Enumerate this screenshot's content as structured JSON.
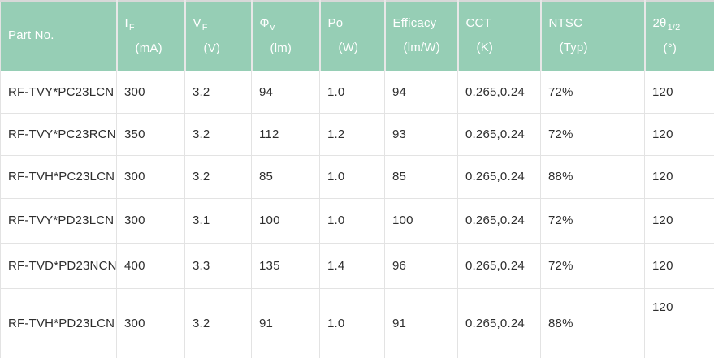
{
  "theme": {
    "header_bg": "#96ceb5",
    "header_text": "#ffffff",
    "body_text": "#2e2e2e",
    "grid_border": "#e3e3e3"
  },
  "table": {
    "columns": [
      {
        "id": "part-no",
        "label": "Part No.",
        "sub": "",
        "unit": ""
      },
      {
        "id": "if",
        "label": "I",
        "sub": "F",
        "unit": "(mA)"
      },
      {
        "id": "vf",
        "label": "V",
        "sub": "F",
        "unit": "(V)"
      },
      {
        "id": "phi-v",
        "label": "Φ",
        "sub": "v",
        "unit": "(lm)"
      },
      {
        "id": "po",
        "label": "Po",
        "sub": "",
        "unit": "(W)"
      },
      {
        "id": "efficacy",
        "label": "Efficacy",
        "sub": "",
        "unit": "(lm/W)"
      },
      {
        "id": "cct",
        "label": "CCT",
        "sub": "",
        "unit": "(K)"
      },
      {
        "id": "ntsc",
        "label": "NTSC",
        "sub": "",
        "unit": "(Typ)"
      },
      {
        "id": "angle",
        "label": "2θ",
        "sub": "1/2",
        "unit": "(°)"
      }
    ],
    "rows": [
      [
        "RF-TVY*PC23LCN",
        "300",
        "3.2",
        "94",
        "1.0",
        "94",
        "0.265,0.24",
        "72%",
        "120"
      ],
      [
        "RF-TVY*PC23RCN",
        "350",
        "3.2",
        "112",
        "1.2",
        "93",
        "0.265,0.24",
        "72%",
        "120"
      ],
      [
        "RF-TVH*PC23LCN",
        "300",
        "3.2",
        "85",
        "1.0",
        "85",
        "0.265,0.24",
        "88%",
        "120"
      ],
      [
        "RF-TVY*PD23LCN",
        "300",
        "3.1",
        "100",
        "1.0",
        "100",
        "0.265,0.24",
        "72%",
        "120"
      ],
      [
        "RF-TVD*PD23NCN",
        "400",
        "3.3",
        "135",
        "1.4",
        "96",
        "0.265,0.24",
        "72%",
        "120"
      ],
      [
        "RF-TVH*PD23LCN",
        "300",
        "3.2",
        "91",
        "1.0",
        "91",
        "0.265,0.24",
        "88%",
        "120"
      ]
    ]
  }
}
